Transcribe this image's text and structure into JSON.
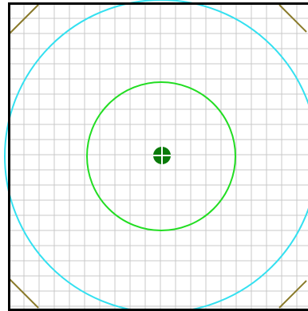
{
  "figure": {
    "grid": true,
    "colors": {
      "background": "#ffffff",
      "grid": "#c8c8c8",
      "border": "#000000",
      "outer_circle": "#33e0f0",
      "inner_circle": "#22dd22",
      "center_marker": "#0a7a0a",
      "center_marker_cross": "#ffffff",
      "corner_marks": "#8a7a2a"
    }
  }
}
